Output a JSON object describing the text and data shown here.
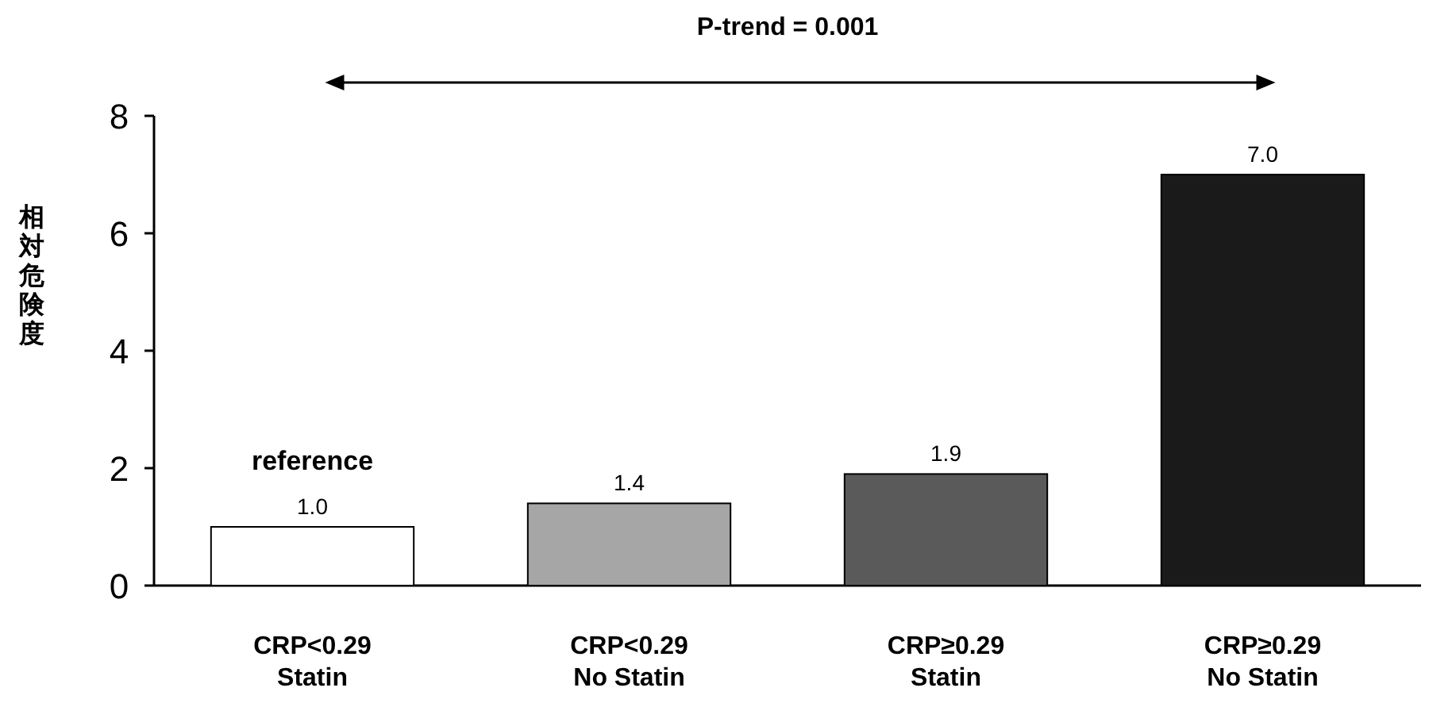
{
  "chart_data": {
    "type": "bar",
    "ylabel": "相対危険度",
    "categories": [
      "CRP<0.29\nStatin",
      "CRP<0.29\nNo Statin",
      "CRP≥0.29\nStatin",
      "CRP≥0.29\nNo Statin"
    ],
    "values": [
      1.0,
      1.4,
      1.9,
      7.0
    ],
    "value_labels": [
      "1.0",
      "1.4",
      "1.9",
      "7.0"
    ],
    "colors": [
      "#ffffff",
      "#a6a6a6",
      "#5a5a5a",
      "#1a1a1a"
    ],
    "ylim": [
      0,
      8
    ],
    "yticks": [
      0,
      2,
      4,
      6,
      8
    ],
    "annotations": [
      "P-trend = 0.001",
      {
        "text": "reference",
        "x": "CRP<0.29\nStatin",
        "y": 1.0
      }
    ]
  }
}
